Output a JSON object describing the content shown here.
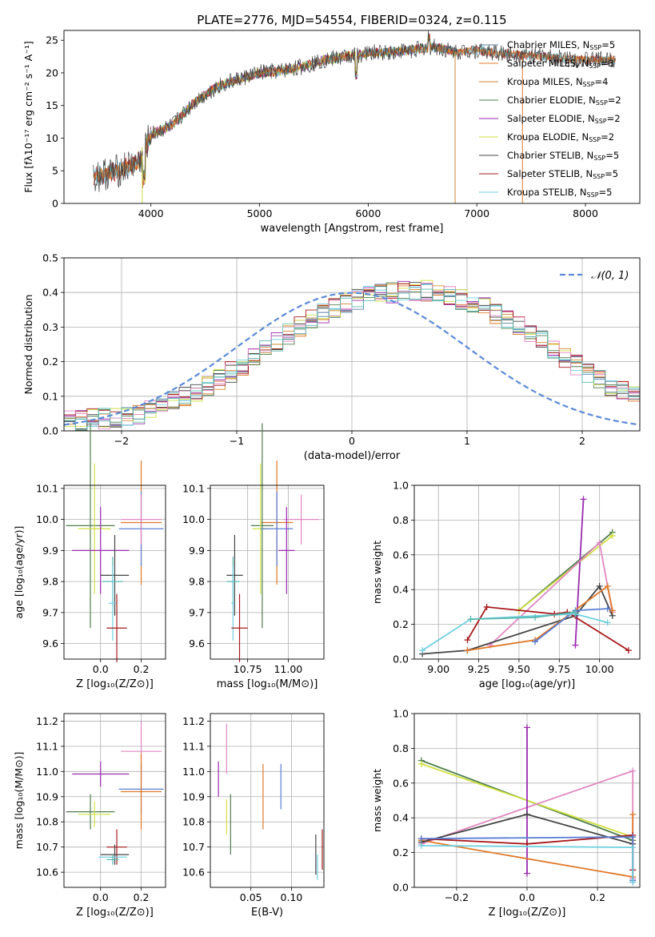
{
  "colors": {
    "Chabrier MILES": "#5a7f9f",
    "Salpeter MILES": "#e07828",
    "Kroupa MILES": "#d08a30",
    "Chabrier ELODIE": "#4f7f4f",
    "Salpeter ELODIE": "#9a2ab0",
    "Kroupa ELODIE": "#d0e040",
    "Chabrier STELIB": "#454545",
    "Salpeter STELIB": "#a8181a",
    "Kroupa STELIB": "#70d0e0",
    "normal": "#5b8ad8",
    "blue_mod": "#5b7fd6",
    "pink_mod": "#e088c0",
    "lime_mod": "#b9e64e",
    "teal_mod": "#58b8b0"
  },
  "chart_data": [
    {
      "type": "line",
      "title": "PLATE=2776, MJD=54554, FIBERID=0324, z=0.115",
      "xlabel": "wavelength [Angstrom, rest frame]",
      "ylabel": "Flux [fλ10⁻¹⁷ erg cm⁻² s⁻¹ A⁻¹]",
      "xlim": [
        3200,
        8500
      ],
      "ylim": [
        0,
        26.5
      ],
      "xticks": [
        "4000",
        "5000",
        "6000",
        "7000",
        "8000"
      ],
      "yticks": [
        "0",
        "5",
        "10",
        "15",
        "20",
        "25"
      ],
      "continuum": {
        "x": [
          3500,
          3700,
          3900,
          4000,
          4200,
          4400,
          4600,
          4800,
          5000,
          5200,
          5400,
          5600,
          5800,
          6000,
          6200,
          6400,
          6600,
          6800,
          7000,
          7200,
          7400,
          7600,
          7800,
          8000,
          8200,
          8280
        ],
        "y": [
          4.2,
          5.0,
          6.5,
          10.5,
          12.0,
          15.5,
          17.8,
          19.0,
          20.0,
          20.3,
          21.0,
          22.0,
          22.5,
          23.0,
          23.2,
          23.5,
          24.0,
          23.2,
          23.5,
          23.0,
          22.8,
          22.5,
          22.2,
          22.0,
          22.0,
          22.1
        ]
      },
      "legend_position": "upper right",
      "series": [
        {
          "name": "Chabrier MILES",
          "nssp": "5"
        },
        {
          "name": "Salpeter MILES",
          "nssp": "3"
        },
        {
          "name": "Kroupa MILES",
          "nssp": "4"
        },
        {
          "name": "Chabrier ELODIE",
          "nssp": "2"
        },
        {
          "name": "Salpeter ELODIE",
          "nssp": "2"
        },
        {
          "name": "Kroupa ELODIE",
          "nssp": "2"
        },
        {
          "name": "Chabrier STELIB",
          "nssp": "5"
        },
        {
          "name": "Salpeter STELIB",
          "nssp": "5"
        },
        {
          "name": "Kroupa STELIB",
          "nssp": "5"
        }
      ]
    },
    {
      "type": "bar",
      "xlabel": "(data-model)/error",
      "ylabel": "Normed distribution",
      "xlim": [
        -2.5,
        2.5
      ],
      "ylim": [
        0,
        0.5
      ],
      "xticks": [
        "−2",
        "−1",
        "0",
        "1",
        "2"
      ],
      "yticks": [
        "0.0",
        "0.1",
        "0.2",
        "0.3",
        "0.4",
        "0.5"
      ],
      "grid": true,
      "legend_label": "𝒩(0, 1)",
      "bin_width": 0.1,
      "bin_start": -2.5,
      "histogram_envelope": [
        0.03,
        0.03,
        0.035,
        0.035,
        0.04,
        0.045,
        0.05,
        0.06,
        0.07,
        0.085,
        0.1,
        0.115,
        0.13,
        0.15,
        0.17,
        0.19,
        0.21,
        0.235,
        0.26,
        0.28,
        0.3,
        0.32,
        0.34,
        0.355,
        0.37,
        0.38,
        0.39,
        0.395,
        0.4,
        0.405,
        0.405,
        0.405,
        0.395,
        0.39,
        0.38,
        0.37,
        0.355,
        0.34,
        0.32,
        0.3,
        0.28,
        0.26,
        0.235,
        0.21,
        0.19,
        0.17,
        0.15,
        0.13,
        0.115,
        0.1,
        0.085,
        0.07,
        0.06,
        0.05,
        0.045,
        0.04,
        0.035,
        0.03,
        0.03,
        0.025
      ]
    },
    {
      "type": "scatter",
      "xlabel": "Z [log₁₀(Z/Z⊙)]",
      "ylabel": "age  [log₁₀(age/yr)]",
      "xlim": [
        -0.18,
        0.32
      ],
      "ylim": [
        9.55,
        10.11
      ],
      "xticks": [
        "0.0",
        "0.2"
      ],
      "yticks": [
        "9.6",
        "9.7",
        "9.8",
        "9.9",
        "10.0",
        "10.1"
      ],
      "points": [
        {
          "s": "Salpeter MILES",
          "x": 0.2,
          "y": 9.99,
          "xe": 0.1,
          "ye": 0.2
        },
        {
          "s": "Chabrier ELODIE",
          "x": -0.05,
          "y": 9.98,
          "xe": 0.12,
          "ye": 0.33
        },
        {
          "s": "Kroupa ELODIE",
          "x": -0.03,
          "y": 9.97,
          "xe": 0.08,
          "ye": 0.21
        },
        {
          "s": "blue_mod",
          "x": 0.2,
          "y": 9.97,
          "xe": 0.11,
          "ye": 0.12
        },
        {
          "s": "pink_mod",
          "x": 0.2,
          "y": 10.0,
          "xe": 0.1,
          "ye": 0.08
        },
        {
          "s": "Salpeter ELODIE",
          "x": 0.0,
          "y": 9.9,
          "xe": 0.14,
          "ye": 0.14
        },
        {
          "s": "Chabrier STELIB",
          "x": 0.07,
          "y": 9.82,
          "xe": 0.07,
          "ye": 0.13
        },
        {
          "s": "teal_mod",
          "x": 0.06,
          "y": 9.8,
          "xe": 0.05,
          "ye": 0.08
        },
        {
          "s": "Kroupa STELIB",
          "x": 0.06,
          "y": 9.73,
          "xe": 0.02,
          "ye": 0.12
        },
        {
          "s": "Salpeter STELIB",
          "x": 0.08,
          "y": 9.65,
          "xe": 0.05,
          "ye": 0.11
        }
      ]
    },
    {
      "type": "scatter",
      "xlabel": "mass [log₁₀(M/M⊙)]",
      "ylabel": "",
      "xlim": [
        10.52,
        11.22
      ],
      "ylim": [
        9.55,
        10.11
      ],
      "xticks": [
        "10.75",
        "11.00"
      ],
      "yticks": [
        "9.6",
        "9.7",
        "9.8",
        "9.9",
        "10.0",
        "10.1"
      ],
      "points": [
        {
          "s": "Salpeter MILES",
          "x": 10.93,
          "y": 9.99,
          "xe": 0.1,
          "ye": 0.2
        },
        {
          "s": "Chabrier ELODIE",
          "x": 10.84,
          "y": 9.98,
          "xe": 0.07,
          "ye": 0.33
        },
        {
          "s": "Kroupa ELODIE",
          "x": 10.83,
          "y": 9.97,
          "xe": 0.05,
          "ye": 0.21
        },
        {
          "s": "blue_mod",
          "x": 10.93,
          "y": 9.97,
          "xe": 0.1,
          "ye": 0.12
        },
        {
          "s": "pink_mod",
          "x": 11.08,
          "y": 10.0,
          "xe": 0.11,
          "ye": 0.08
        },
        {
          "s": "Salpeter ELODIE",
          "x": 10.99,
          "y": 9.9,
          "xe": 0.05,
          "ye": 0.14
        },
        {
          "s": "Chabrier STELIB",
          "x": 10.67,
          "y": 9.82,
          "xe": 0.05,
          "ye": 0.13
        },
        {
          "s": "teal_mod",
          "x": 10.66,
          "y": 9.8,
          "xe": 0.04,
          "ye": 0.08
        },
        {
          "s": "Kroupa STELIB",
          "x": 10.66,
          "y": 9.73,
          "xe": 0.01,
          "ye": 0.12
        },
        {
          "s": "Salpeter STELIB",
          "x": 10.7,
          "y": 9.65,
          "xe": 0.05,
          "ye": 0.11
        }
      ]
    },
    {
      "type": "line",
      "xlabel": "age  [log₁₀(age/yr)]",
      "ylabel": "mass weight",
      "xlim": [
        8.85,
        10.25
      ],
      "ylim": [
        0,
        1
      ],
      "xticks": [
        "9.00",
        "9.25",
        "9.50",
        "9.75",
        "10.00"
      ],
      "yticks": [
        "0.0",
        "0.2",
        "0.4",
        "0.6",
        "0.8",
        "1.0"
      ],
      "grid": true,
      "series": [
        {
          "s": "Chabrier ELODIE",
          "x": [
            9.5,
            10.08
          ],
          "y": [
            0.28,
            0.73
          ]
        },
        {
          "s": "Kroupa ELODIE",
          "x": [
            9.5,
            10.08
          ],
          "y": [
            0.28,
            0.71
          ]
        },
        {
          "s": "Salpeter ELODIE",
          "x": [
            9.85,
            9.9
          ],
          "y": [
            0.08,
            0.92
          ]
        },
        {
          "s": "pink_mod",
          "x": [
            9.32,
            10.0,
            10.08
          ],
          "y": [
            0.08,
            0.67,
            0.27
          ]
        },
        {
          "s": "Chabrier STELIB",
          "x": [
            8.9,
            9.18,
            9.85,
            10.0,
            10.08
          ],
          "y": [
            0.03,
            0.05,
            0.25,
            0.42,
            0.25
          ]
        },
        {
          "s": "Salpeter STELIB",
          "x": [
            9.18,
            9.3,
            9.72,
            9.8,
            10.18
          ],
          "y": [
            0.11,
            0.3,
            0.26,
            0.27,
            0.05
          ]
        },
        {
          "s": "Salpeter MILES",
          "x": [
            9.18,
            9.6,
            10.05,
            10.08
          ],
          "y": [
            0.05,
            0.11,
            0.42,
            0.28
          ]
        },
        {
          "s": "blue_mod",
          "x": [
            9.6,
            9.85,
            10.05
          ],
          "y": [
            0.1,
            0.28,
            0.29
          ]
        },
        {
          "s": "Kroupa STELIB",
          "x": [
            8.9,
            9.2,
            9.85,
            10.05
          ],
          "y": [
            0.05,
            0.23,
            0.26,
            0.21
          ]
        },
        {
          "s": "teal_mod",
          "x": [
            9.2,
            9.6,
            9.85
          ],
          "y": [
            0.23,
            0.24,
            0.27
          ]
        }
      ]
    },
    {
      "type": "scatter",
      "xlabel": "Z [log₁₀(Z/Z⊙)]",
      "ylabel": "mass [log₁₀(M/M⊙)]",
      "xlim": [
        -0.18,
        0.32
      ],
      "ylim": [
        10.54,
        11.23
      ],
      "xticks": [
        "0.0",
        "0.2"
      ],
      "yticks": [
        "10.6",
        "10.7",
        "10.8",
        "10.9",
        "11.0",
        "11.1",
        "11.2"
      ],
      "points": [
        {
          "s": "pink_mod",
          "x": 0.2,
          "y": 11.08,
          "xe": 0.1,
          "ye": 0.12
        },
        {
          "s": "Salpeter ELODIE",
          "x": 0.0,
          "y": 10.99,
          "xe": 0.14,
          "ye": 0.05
        },
        {
          "s": "blue_mod",
          "x": 0.2,
          "y": 10.93,
          "xe": 0.11,
          "ye": 0.1
        },
        {
          "s": "Salpeter MILES",
          "x": 0.2,
          "y": 10.92,
          "xe": 0.1,
          "ye": 0.15
        },
        {
          "s": "Chabrier ELODIE",
          "x": -0.05,
          "y": 10.84,
          "xe": 0.12,
          "ye": 0.07
        },
        {
          "s": "Kroupa ELODIE",
          "x": -0.03,
          "y": 10.83,
          "xe": 0.08,
          "ye": 0.05
        },
        {
          "s": "Salpeter STELIB",
          "x": 0.08,
          "y": 10.7,
          "xe": 0.05,
          "ye": 0.07
        },
        {
          "s": "Chabrier STELIB",
          "x": 0.07,
          "y": 10.67,
          "xe": 0.07,
          "ye": 0.04
        },
        {
          "s": "Kroupa STELIB",
          "x": 0.06,
          "y": 10.66,
          "xe": 0.07,
          "ye": 0.01
        },
        {
          "s": "teal_mod",
          "x": 0.06,
          "y": 10.65,
          "xe": 0.03,
          "ye": 0.02
        }
      ]
    },
    {
      "type": "scatter",
      "xlabel": "E(B-V)",
      "ylabel": "",
      "xlim": [
        0.0,
        0.14
      ],
      "ylim": [
        10.54,
        11.23
      ],
      "xticks": [
        "0.05",
        "0.10"
      ],
      "yticks": [
        "10.6",
        "10.7",
        "10.8",
        "10.9",
        "11.0",
        "11.1",
        "11.2"
      ],
      "points": [
        {
          "s": "pink_mod",
          "x": 0.02,
          "y": 11.09,
          "xe": 0,
          "ye": 0.1
        },
        {
          "s": "Salpeter ELODIE",
          "x": 0.01,
          "y": 10.97,
          "xe": 0,
          "ye": 0.07
        },
        {
          "s": "Kroupa ELODIE",
          "x": 0.02,
          "y": 10.82,
          "xe": 0,
          "ye": 0.07
        },
        {
          "s": "Chabrier ELODIE",
          "x": 0.025,
          "y": 10.79,
          "xe": 0,
          "ye": 0.12
        },
        {
          "s": "Salpeter MILES",
          "x": 0.065,
          "y": 10.9,
          "xe": 0,
          "ye": 0.13
        },
        {
          "s": "blue_mod",
          "x": 0.087,
          "y": 10.94,
          "xe": 0,
          "ye": 0.09
        },
        {
          "s": "Chabrier STELIB",
          "x": 0.13,
          "y": 10.67,
          "xe": 0,
          "ye": 0.08
        },
        {
          "s": "Kroupa STELIB",
          "x": 0.132,
          "y": 10.62,
          "xe": 0,
          "ye": 0.05
        },
        {
          "s": "Salpeter STELIB",
          "x": 0.138,
          "y": 10.69,
          "xe": 0,
          "ye": 0.08
        }
      ]
    },
    {
      "type": "line",
      "xlabel": "Z [log₁₀(Z/Z⊙)]",
      "ylabel": "mass weight",
      "xlim": [
        -0.32,
        0.32
      ],
      "ylim": [
        0,
        1
      ],
      "xticks": [
        "−0.2",
        "0.0",
        "0.2"
      ],
      "yticks": [
        "0.0",
        "0.2",
        "0.4",
        "0.6",
        "0.8",
        "1.0"
      ],
      "grid": true,
      "series": [
        {
          "s": "Chabrier ELODIE",
          "x": [
            -0.3,
            0.3
          ],
          "y": [
            0.73,
            0.27
          ]
        },
        {
          "s": "Kroupa ELODIE",
          "x": [
            -0.3,
            0.3
          ],
          "y": [
            0.71,
            0.29
          ]
        },
        {
          "s": "pink_mod",
          "x": [
            -0.3,
            0.3,
            0.3
          ],
          "y": [
            0.25,
            0.67,
            0.05
          ]
        },
        {
          "s": "Salpeter ELODIE",
          "x": [
            0.0,
            0.0
          ],
          "y": [
            0.08,
            0.92
          ]
        },
        {
          "s": "Salpeter MILES",
          "x": [
            -0.3,
            0.3,
            0.3
          ],
          "y": [
            0.27,
            0.06,
            0.42
          ]
        },
        {
          "s": "Chabrier STELIB",
          "x": [
            -0.3,
            0.0,
            0.3,
            0.3
          ],
          "y": [
            0.26,
            0.42,
            0.25,
            0.03
          ]
        },
        {
          "s": "Salpeter STELIB",
          "x": [
            -0.3,
            0.0,
            0.3,
            0.3
          ],
          "y": [
            0.28,
            0.25,
            0.3,
            0.1
          ]
        },
        {
          "s": "blue_mod",
          "x": [
            -0.3,
            0.3,
            0.3
          ],
          "y": [
            0.28,
            0.29,
            0.04
          ]
        },
        {
          "s": "Kroupa STELIB",
          "x": [
            -0.3,
            0.3,
            0.3
          ],
          "y": [
            0.24,
            0.23,
            0.03
          ]
        }
      ]
    }
  ]
}
